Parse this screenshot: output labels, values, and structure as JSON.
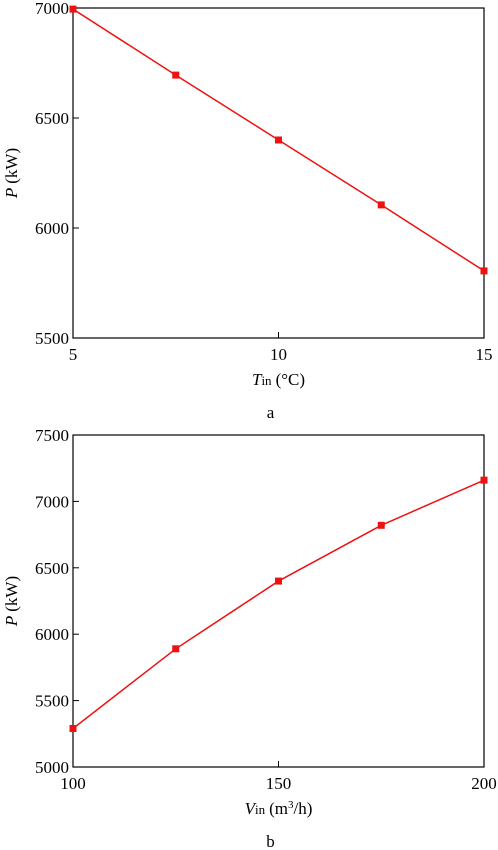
{
  "chart_data": [
    {
      "type": "line",
      "caption": "a",
      "xlabel": {
        "symbol": "T",
        "subscript": "in",
        "unit": "(°C)"
      },
      "ylabel": {
        "symbol": "P",
        "unit": "(kW)"
      },
      "x": [
        5,
        7.5,
        10,
        12.5,
        15
      ],
      "values": [
        6995,
        6695,
        6400,
        6105,
        5805
      ],
      "color": "#ee1111",
      "xlim": [
        5,
        15
      ],
      "xticks": [
        5,
        10,
        15
      ],
      "ylim": [
        5500,
        7000
      ],
      "yticks": [
        5500,
        6000,
        6500,
        7000
      ]
    },
    {
      "type": "line",
      "caption": "b",
      "xlabel": {
        "symbol": "V",
        "subscript": "in",
        "unit_start": "(m",
        "superscript": "3",
        "unit_end": "/h)"
      },
      "ylabel": {
        "symbol": "P",
        "unit": "(kW)"
      },
      "x": [
        100,
        125,
        150,
        175,
        200
      ],
      "values": [
        5290,
        5890,
        6400,
        6820,
        7160
      ],
      "color": "#ee1111",
      "xlim": [
        100,
        200
      ],
      "xticks": [
        100,
        150,
        200
      ],
      "ylim": [
        5000,
        7500
      ],
      "yticks": [
        5000,
        5500,
        6000,
        6500,
        7000,
        7500
      ]
    }
  ]
}
